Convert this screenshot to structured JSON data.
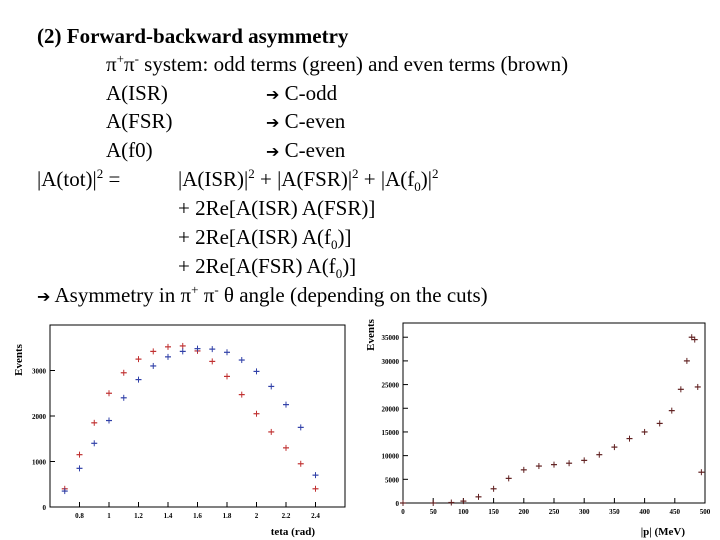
{
  "slide": {
    "title": "(2) Forward-backward asymmetry",
    "system_prefix": "π",
    "system_sup1": "+",
    "system_mid": "π",
    "system_sup2": "-",
    "system_rest": " system: odd terms (green) and even terms (brown)",
    "arrow": "➔",
    "amplitudes": [
      {
        "name": "A(ISR)",
        "parity": "C-odd"
      },
      {
        "name": "A(FSR)",
        "parity": "C-even"
      },
      {
        "name": "A(f0)",
        "parity": "C-even"
      }
    ],
    "eq_lhs": "|A(tot)|",
    "eq_sq": "2",
    "eq_eq": " =",
    "eq_rhs1": "|A(ISR)|",
    "eq_plus": " + ",
    "eq_rhs2": "|A(FSR)|",
    "eq_rhs3": "|A(f",
    "eq_f_sub": "0",
    "eq_rhs3_end": ")|",
    "term1": "+ 2Re[A(ISR) A(FSR)]",
    "term2_pre": "+ 2Re[A(ISR) A(f",
    "term2_post": ")]",
    "term3_pre": "+ 2Re[A(FSR) A(f",
    "term3_post": ")]",
    "conclusion_pre": " Asymmetry in ",
    "conclusion_pi": "π",
    "conclusion_plus": "+",
    "conclusion_minus": "-",
    "conclusion_theta": "θ",
    "conclusion_post": " angle (depending on the cuts)"
  },
  "chart_data": [
    {
      "type": "scatter",
      "ylabel": "Events",
      "xlabel": "teta (rad)",
      "xlim": [
        0.6,
        2.6
      ],
      "ylim": [
        0,
        4000
      ],
      "x_ticks": [
        "0.8",
        "1",
        "1.2",
        "1.4",
        "1.6",
        "1.8",
        "2",
        "2.2",
        "2.4"
      ],
      "y_ticks": [
        "0",
        "1000",
        "2000",
        "3000"
      ],
      "series": [
        {
          "color": "#c03030",
          "points": [
            [
              0.7,
              400
            ],
            [
              0.8,
              1150
            ],
            [
              0.9,
              1850
            ],
            [
              1.0,
              2500
            ],
            [
              1.1,
              2950
            ],
            [
              1.2,
              3250
            ],
            [
              1.3,
              3420
            ],
            [
              1.4,
              3520
            ],
            [
              1.5,
              3540
            ],
            [
              1.6,
              3430
            ],
            [
              1.7,
              3200
            ],
            [
              1.8,
              2870
            ],
            [
              1.9,
              2470
            ],
            [
              2.0,
              2050
            ],
            [
              2.1,
              1650
            ],
            [
              2.2,
              1300
            ],
            [
              2.3,
              950
            ],
            [
              2.4,
              400
            ]
          ]
        },
        {
          "color": "#3040a8",
          "points": [
            [
              0.7,
              350
            ],
            [
              0.8,
              850
            ],
            [
              0.9,
              1400
            ],
            [
              1.0,
              1900
            ],
            [
              1.1,
              2400
            ],
            [
              1.2,
              2800
            ],
            [
              1.3,
              3100
            ],
            [
              1.4,
              3300
            ],
            [
              1.5,
              3420
            ],
            [
              1.6,
              3480
            ],
            [
              1.7,
              3470
            ],
            [
              1.8,
              3400
            ],
            [
              1.9,
              3230
            ],
            [
              2.0,
              2980
            ],
            [
              2.1,
              2650
            ],
            [
              2.2,
              2250
            ],
            [
              2.3,
              1750
            ],
            [
              2.4,
              700
            ]
          ]
        }
      ]
    },
    {
      "type": "scatter",
      "ylabel": "Events",
      "xlabel": "|p| (MeV)",
      "xlim": [
        0,
        500
      ],
      "ylim": [
        0,
        38000
      ],
      "x_ticks": [
        "0",
        "50",
        "100",
        "150",
        "200",
        "250",
        "300",
        "350",
        "400",
        "450",
        "500"
      ],
      "y_ticks": [
        "0",
        "5000",
        "10000",
        "15000",
        "20000",
        "25000",
        "30000",
        "35000"
      ],
      "series": [
        {
          "color": "#602020",
          "points": [
            [
              0,
              0
            ],
            [
              50,
              0
            ],
            [
              80,
              100
            ],
            [
              100,
              400
            ],
            [
              125,
              1300
            ],
            [
              150,
              3000
            ],
            [
              175,
              5200
            ],
            [
              200,
              7000
            ],
            [
              225,
              7800
            ],
            [
              250,
              8100
            ],
            [
              275,
              8400
            ],
            [
              300,
              9000
            ],
            [
              325,
              10200
            ],
            [
              350,
              11800
            ],
            [
              375,
              13600
            ],
            [
              400,
              15000
            ],
            [
              425,
              16800
            ],
            [
              445,
              19500
            ],
            [
              460,
              24000
            ],
            [
              470,
              30000
            ],
            [
              478,
              35000
            ],
            [
              483,
              34500
            ],
            [
              488,
              24500
            ],
            [
              494,
              6500
            ]
          ]
        }
      ]
    }
  ]
}
